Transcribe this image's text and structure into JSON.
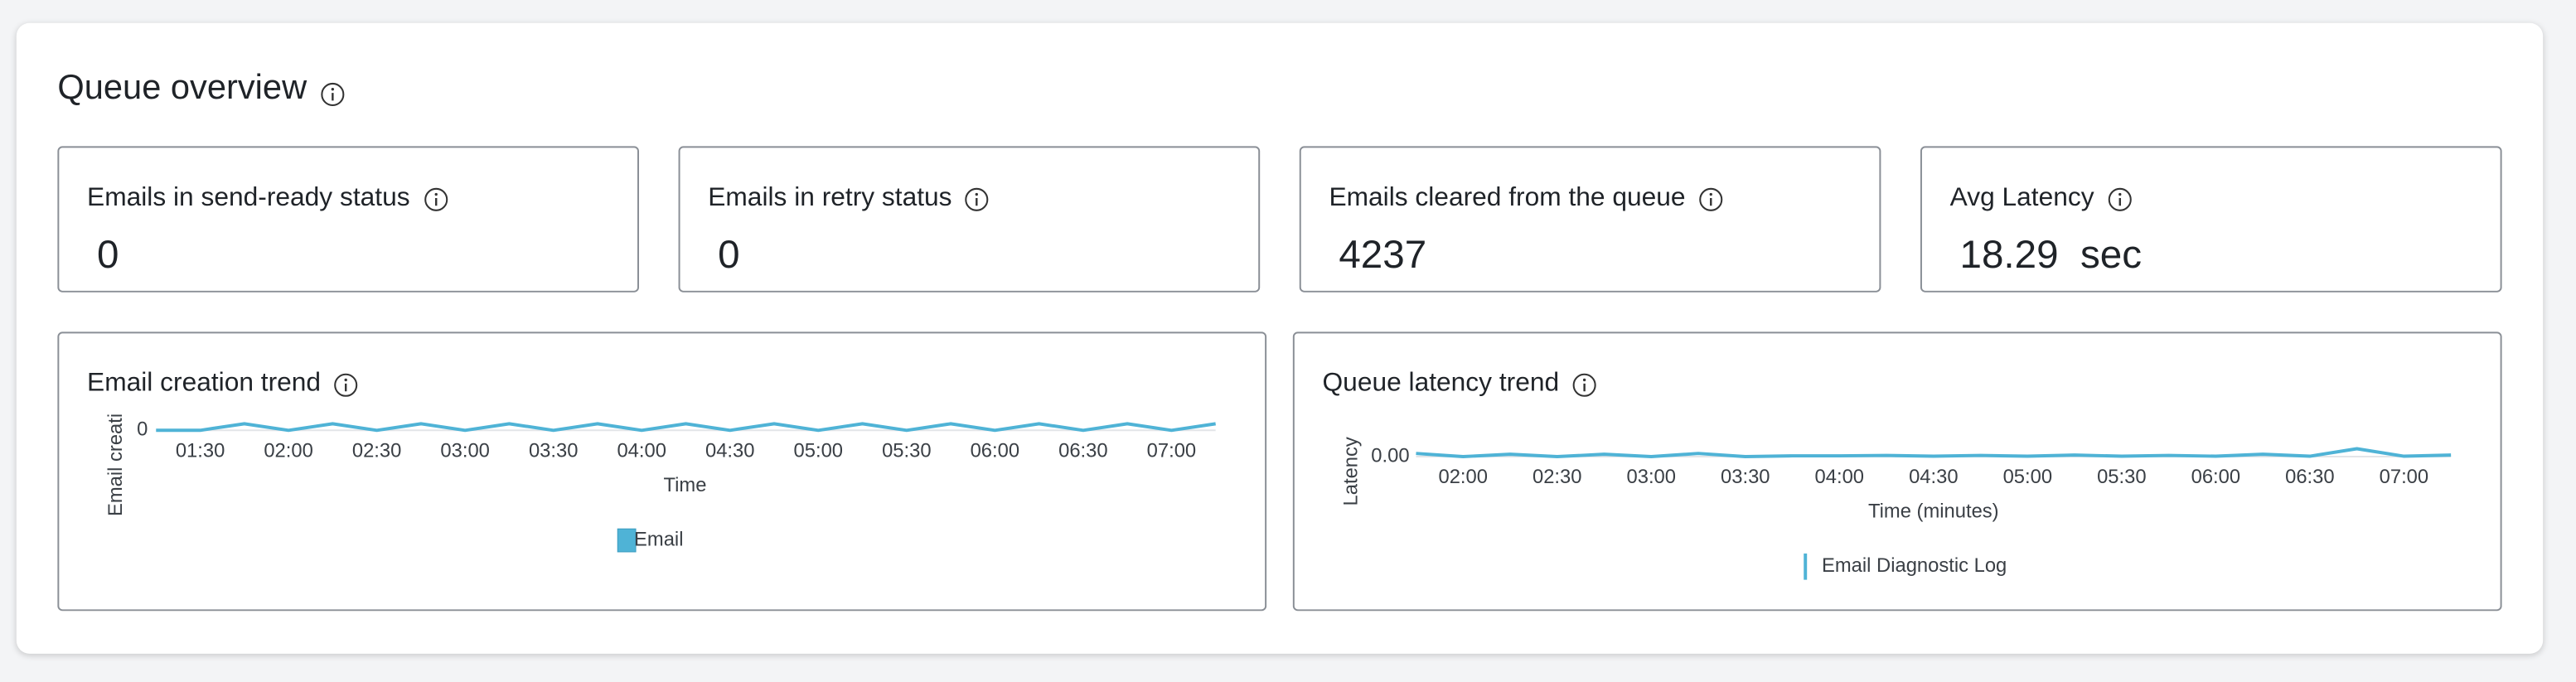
{
  "header": {
    "title": "Queue overview"
  },
  "cards": [
    {
      "label": "Emails in send-ready status",
      "value": 0
    },
    {
      "label": "Emails in retry status",
      "value": 0
    },
    {
      "label": "Emails cleared from the queue",
      "value": 4237
    },
    {
      "label": "Avg Latency",
      "value": 18.29,
      "unit": "sec"
    }
  ],
  "chart_data": [
    {
      "type": "line",
      "title": "Email creation trend",
      "x_label": "Time",
      "y_label": "Email creati",
      "categories": [
        null,
        "01:30",
        null,
        "02:00",
        null,
        "02:30",
        null,
        "03:00",
        null,
        "03:30",
        null,
        "04:00",
        null,
        "04:30",
        null,
        "05:00",
        null,
        "05:30",
        null,
        "06:00",
        null,
        "06:30",
        null,
        "07:00",
        null
      ],
      "series": [
        {
          "name": "Email",
          "color": "#4fb3d6",
          "values": [
            0,
            0,
            1,
            0,
            1,
            0,
            1,
            0,
            1,
            0,
            1,
            0,
            1,
            0,
            1,
            0,
            1,
            0,
            1,
            0,
            1,
            0,
            1,
            0,
            1
          ]
        }
      ],
      "ylim": [
        0,
        3
      ],
      "yticks": [
        0
      ],
      "grid": false
    },
    {
      "type": "line",
      "title": "Queue latency trend",
      "x_label": "Time (minutes)",
      "y_label": "Latency",
      "categories": [
        null,
        "02:00",
        null,
        "02:30",
        null,
        "03:00",
        null,
        "03:30",
        null,
        "04:00",
        null,
        "04:30",
        null,
        "05:00",
        null,
        "05:30",
        null,
        "06:00",
        null,
        "06:30",
        null,
        "07:00",
        null
      ],
      "series": [
        {
          "name": "Email Diagnostic Log",
          "color": "#4fb3d6",
          "values": [
            0.008,
            0,
            0.006,
            0,
            0.006,
            0,
            0.008,
            0,
            0.002,
            0.002,
            0.003,
            0.001,
            0.003,
            0.001,
            0.004,
            0.001,
            0.003,
            0.001,
            0.006,
            0.001,
            0.02,
            0.001,
            0.004
          ]
        }
      ],
      "ylim": [
        0,
        0.05
      ],
      "yticks": [
        {
          "value": 0,
          "label": "0.00"
        }
      ],
      "grid": false
    }
  ]
}
